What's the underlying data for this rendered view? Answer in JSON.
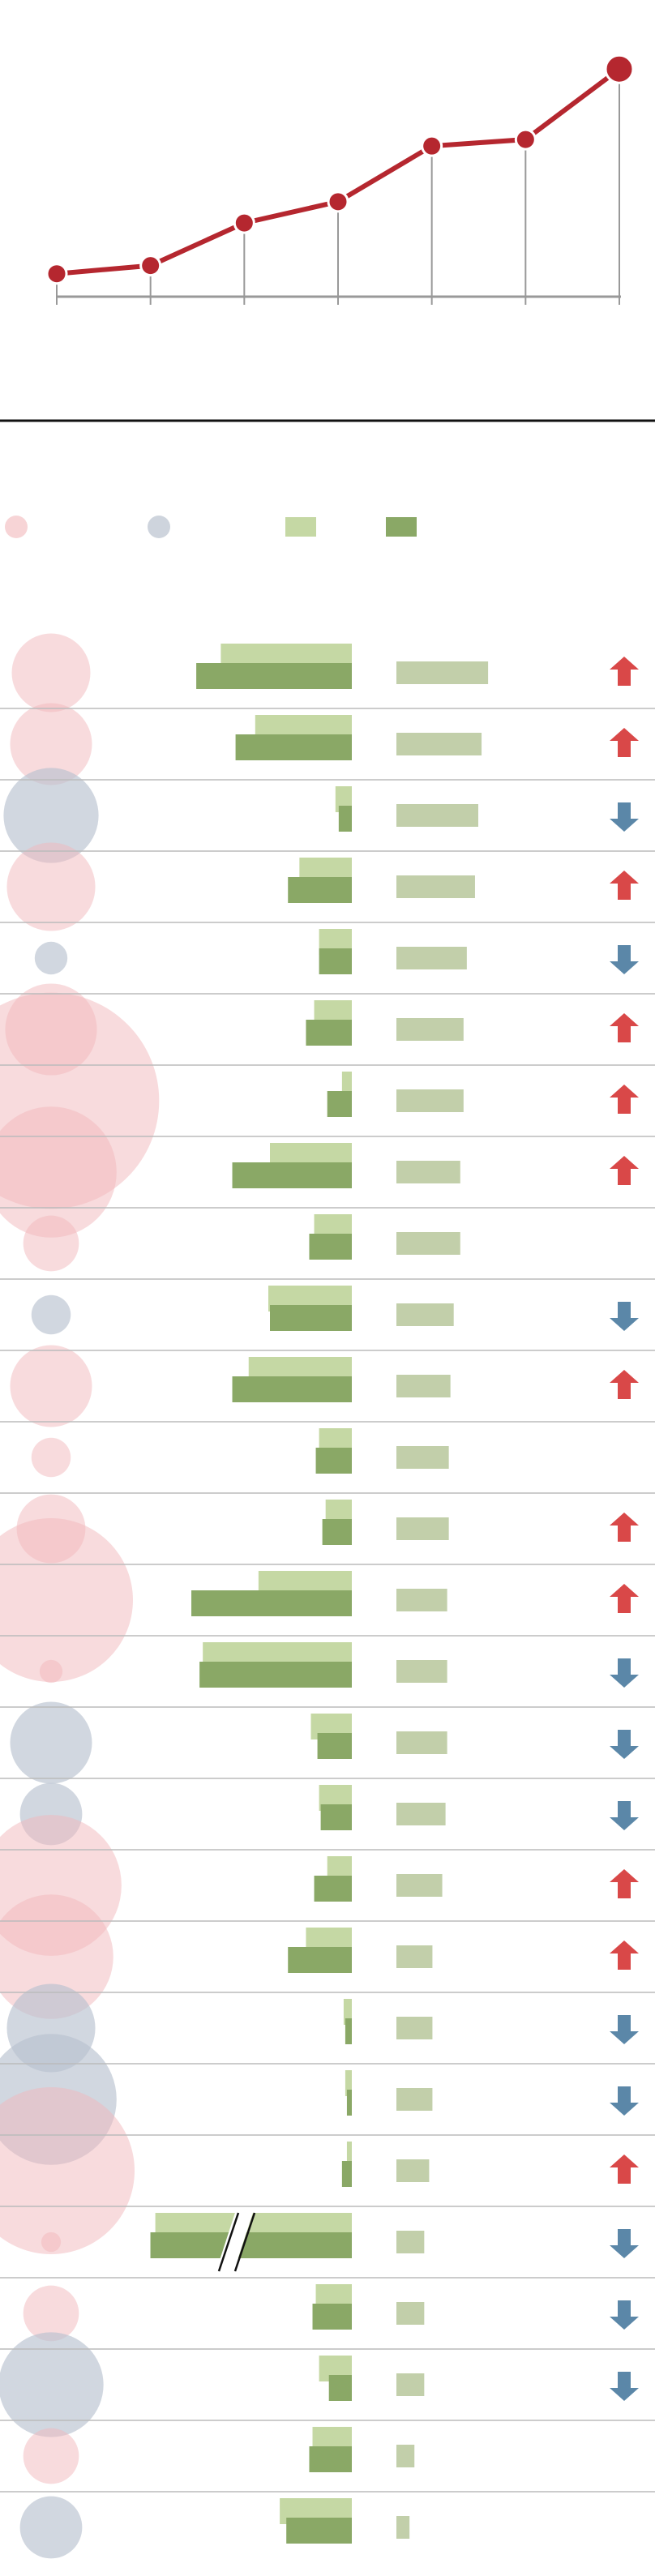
{
  "chart_data": [
    {
      "type": "line",
      "categories": [
        null,
        null,
        null,
        null,
        null,
        null,
        null
      ],
      "values": [
        14,
        19,
        45,
        58,
        92,
        96,
        139
      ],
      "color": "#b5272f",
      "ylim": [
        0,
        150
      ]
    },
    {
      "type": "bubble-bar-table",
      "colors": {
        "pink": "#f2b8bb",
        "gray": "#b9c2cf",
        "light": "#c5d8a4",
        "dark": "#8aa866",
        "right": "#c2cfaa",
        "up": "#d94848",
        "down": "#5b87a8"
      },
      "xlim": [
        0,
        100
      ],
      "right_xlim": [
        0,
        100
      ],
      "rows": [
        {
          "size": 24,
          "kind": "pink",
          "light": 80,
          "dark": 95,
          "right": 56,
          "trend": "up"
        },
        {
          "size": 25,
          "kind": "pink",
          "light": 59,
          "dark": 71,
          "right": 52,
          "trend": "up"
        },
        {
          "size": 29,
          "kind": "gray",
          "light": 10,
          "dark": 8,
          "right": 50,
          "trend": "down"
        },
        {
          "size": 27,
          "kind": "pink",
          "light": 32,
          "dark": 39,
          "right": 48,
          "trend": "up"
        },
        {
          "size": 10,
          "kind": "gray",
          "light": 20,
          "dark": 20,
          "right": 43,
          "trend": "down"
        },
        {
          "size": 28,
          "kind": "pink",
          "light": 23,
          "dark": 28,
          "right": 41,
          "trend": "up"
        },
        {
          "size": 66,
          "kind": "pink",
          "light": 6,
          "dark": 15,
          "right": 41,
          "trend": "up"
        },
        {
          "size": 40,
          "kind": "pink",
          "light": 50,
          "dark": 73,
          "right": 39,
          "trend": "up"
        },
        {
          "size": 17,
          "kind": "pink",
          "light": 23,
          "dark": 26,
          "right": 39,
          "trend": null
        },
        {
          "size": 12,
          "kind": "gray",
          "light": 51,
          "dark": 50,
          "right": 35,
          "trend": "down"
        },
        {
          "size": 25,
          "kind": "pink",
          "light": 63,
          "dark": 73,
          "right": 33,
          "trend": "up"
        },
        {
          "size": 12,
          "kind": "pink",
          "light": 20,
          "dark": 22,
          "right": 32,
          "trend": null
        },
        {
          "size": 21,
          "kind": "pink",
          "light": 16,
          "dark": 18,
          "right": 32,
          "trend": "up"
        },
        {
          "size": 50,
          "kind": "pink",
          "light": 57,
          "dark": 98,
          "right": 31,
          "trend": "up"
        },
        {
          "size": 7,
          "kind": "pink",
          "light": 91,
          "dark": 93,
          "right": 31,
          "trend": "down"
        },
        {
          "size": 25,
          "kind": "gray",
          "light": 25,
          "dark": 21,
          "right": 31,
          "trend": "down"
        },
        {
          "size": 19,
          "kind": "gray",
          "light": 20,
          "dark": 19,
          "right": 30,
          "trend": "down"
        },
        {
          "size": 43,
          "kind": "pink",
          "light": 15,
          "dark": 23,
          "right": 28,
          "trend": "up"
        },
        {
          "size": 38,
          "kind": "pink",
          "light": 28,
          "dark": 39,
          "right": 22,
          "trend": "up"
        },
        {
          "size": 27,
          "kind": "gray",
          "light": 5,
          "dark": 4,
          "right": 22,
          "trend": "down"
        },
        {
          "size": 40,
          "kind": "gray",
          "light": 4,
          "dark": 3,
          "right": 22,
          "trend": "down"
        },
        {
          "size": 51,
          "kind": "pink",
          "light": 3,
          "dark": 6,
          "right": 20,
          "trend": "up"
        },
        {
          "size": 6,
          "kind": "pink",
          "light": 120,
          "dark": 123,
          "right": 17,
          "trend": "down",
          "axis_break": true
        },
        {
          "size": 17,
          "kind": "pink",
          "light": 22,
          "dark": 24,
          "right": 17,
          "trend": "down"
        },
        {
          "size": 32,
          "kind": "gray",
          "light": 20,
          "dark": 14,
          "right": 17,
          "trend": "down"
        },
        {
          "size": 17,
          "kind": "pink",
          "light": 24,
          "dark": 26,
          "right": 11,
          "trend": null
        },
        {
          "size": 19,
          "kind": "gray",
          "light": 44,
          "dark": 40,
          "right": 8,
          "trend": null
        }
      ]
    }
  ]
}
